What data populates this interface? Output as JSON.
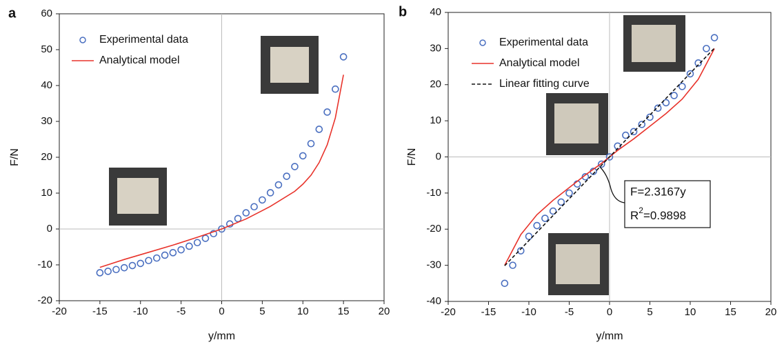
{
  "chart_data": [
    {
      "type": "scatter",
      "panel_label": "a",
      "xlabel": "y/mm",
      "ylabel": "F/N",
      "xlim": [
        -20,
        20
      ],
      "ylim": [
        -20,
        60
      ],
      "xticks": [
        -20,
        -15,
        -10,
        -5,
        0,
        5,
        10,
        15,
        20
      ],
      "yticks": [
        -20,
        -10,
        0,
        10,
        20,
        30,
        40,
        50,
        60
      ],
      "legend": "upper left",
      "series": [
        {
          "name": "Experimental data",
          "style": "marker",
          "color": "#4a6fc0",
          "x": [
            -15,
            -14,
            -13,
            -12,
            -11,
            -10,
            -9,
            -8,
            -7,
            -6,
            -5,
            -4,
            -3,
            -2,
            -1,
            0,
            1,
            2,
            3,
            4,
            5,
            6,
            7,
            8,
            9,
            10,
            11,
            12,
            13,
            14,
            15
          ],
          "values": [
            -12.2,
            -11.8,
            -11.3,
            -10.8,
            -10.2,
            -9.6,
            -8.8,
            -8.1,
            -7.3,
            -6.6,
            -5.8,
            -4.8,
            -3.8,
            -2.6,
            -1.3,
            0,
            1.4,
            2.9,
            4.5,
            6.2,
            8.1,
            10.1,
            12.3,
            14.7,
            17.4,
            20.4,
            23.8,
            27.8,
            32.6,
            39,
            48
          ]
        },
        {
          "name": "Analytical model",
          "style": "line",
          "color": "#e8322a",
          "x": [
            -15,
            -12,
            -9,
            -6,
            -3,
            0,
            3,
            6,
            9,
            10,
            11,
            12,
            13,
            14,
            15
          ],
          "values": [
            -10.7,
            -8.5,
            -6.5,
            -4.5,
            -2.3,
            0,
            2.8,
            6.3,
            10.5,
            12.5,
            15,
            18.5,
            23.5,
            31,
            43
          ]
        }
      ]
    },
    {
      "type": "scatter",
      "panel_label": "b",
      "xlabel": "y/mm",
      "ylabel": "F/N",
      "xlim": [
        -20,
        20
      ],
      "ylim": [
        -40,
        40
      ],
      "xticks": [
        -20,
        -15,
        -10,
        -5,
        0,
        5,
        10,
        15,
        20
      ],
      "yticks": [
        -40,
        -30,
        -20,
        -10,
        0,
        10,
        20,
        30,
        40
      ],
      "legend": "upper left",
      "annotation": {
        "equation": "F=2.3167y",
        "r_base": "R",
        "r_sup": "2",
        "r_value": "=0.9898"
      },
      "series": [
        {
          "name": "Experimental data",
          "style": "marker",
          "color": "#4a6fc0",
          "x": [
            -13,
            -12,
            -11,
            -10,
            -9,
            -8,
            -7,
            -6,
            -5,
            -4,
            -3,
            -2,
            -1,
            0,
            1,
            2,
            3,
            4,
            5,
            6,
            7,
            8,
            9,
            10,
            11,
            12,
            13
          ],
          "values": [
            -35,
            -30,
            -26,
            -22,
            -19,
            -17,
            -15,
            -12.5,
            -10,
            -7.5,
            -5.5,
            -4,
            -2,
            0,
            3,
            6,
            7,
            9,
            11,
            13.5,
            15,
            17,
            19.5,
            23,
            26,
            30,
            33
          ]
        },
        {
          "name": "Analytical model",
          "style": "line",
          "color": "#e8322a",
          "x": [
            -13,
            -11,
            -9,
            -7,
            -5,
            -3,
            -1,
            0,
            1,
            3,
            5,
            7,
            9,
            11,
            13
          ],
          "values": [
            -30,
            -21.5,
            -16,
            -12,
            -8.5,
            -5,
            -1.8,
            0,
            1.8,
            5,
            8.5,
            12,
            16,
            21.5,
            30
          ]
        },
        {
          "name": "Linear fitting curve",
          "style": "dashed",
          "color": "#111111",
          "x": [
            -13,
            13
          ],
          "values": [
            -30.12,
            30.12
          ]
        }
      ]
    }
  ]
}
